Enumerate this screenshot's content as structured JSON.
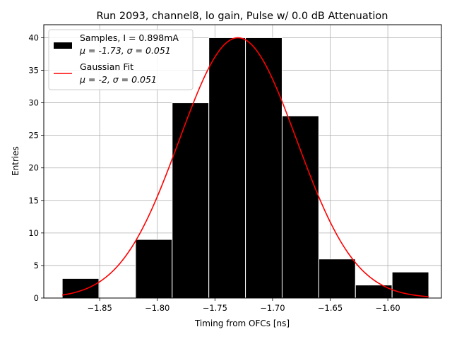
{
  "chart_data": {
    "type": "bar",
    "title": "Run 2093, channel8, lo gain, Pulse w/ 0.0 dB Attenuation",
    "xlabel": "Timing from OFCs [ns]",
    "ylabel": "Entries",
    "xlim": [
      -1.8985,
      -1.5535
    ],
    "ylim": [
      0,
      42
    ],
    "grid": true,
    "legend_position": "top-left",
    "xticks": [
      -1.85,
      -1.8,
      -1.75,
      -1.7,
      -1.65,
      -1.6
    ],
    "xtick_labels": [
      "−1.85",
      "−1.80",
      "−1.75",
      "−1.70",
      "−1.65",
      "−1.60"
    ],
    "yticks": [
      0,
      5,
      10,
      15,
      20,
      25,
      30,
      35,
      40
    ],
    "ytick_labels": [
      "0",
      "5",
      "10",
      "15",
      "20",
      "25",
      "30",
      "35",
      "40"
    ],
    "bin_width": 0.0318,
    "bins": [
      {
        "x0": -1.8825,
        "count": 3
      },
      {
        "x0": -1.8507,
        "count": 0
      },
      {
        "x0": -1.8189,
        "count": 9
      },
      {
        "x0": -1.7871,
        "count": 30
      },
      {
        "x0": -1.7553,
        "count": 40
      },
      {
        "x0": -1.7235,
        "count": 40
      },
      {
        "x0": -1.6917,
        "count": 28
      },
      {
        "x0": -1.6599,
        "count": 6
      },
      {
        "x0": -1.6281,
        "count": 2
      },
      {
        "x0": -1.5963,
        "count": 4
      }
    ],
    "series": [
      {
        "name": "Samples, I = 0.898mA",
        "stats": "μ = -1.73, σ = 0.051",
        "color": "#000000",
        "kind": "histogram"
      },
      {
        "name": "Gaussian Fit",
        "stats": "μ = -2, σ = 0.051",
        "color": "#ff0000",
        "kind": "line",
        "fit": {
          "amplitude": 40,
          "mean": -1.73,
          "sigma": 0.051,
          "x_range": [
            -1.8825,
            -1.5645
          ]
        }
      }
    ]
  }
}
